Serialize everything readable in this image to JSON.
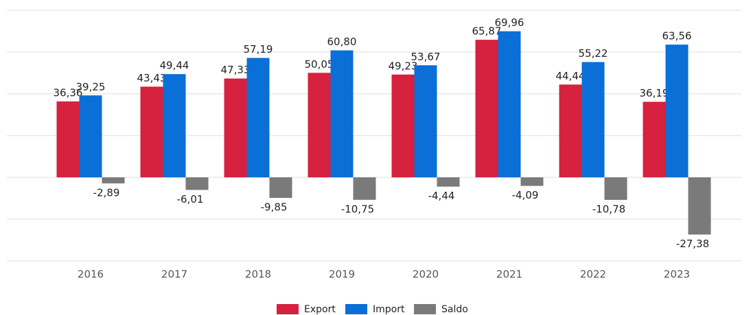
{
  "chart_data": {
    "type": "bar",
    "categories": [
      "2016",
      "2017",
      "2018",
      "2019",
      "2020",
      "2021",
      "2022",
      "2023"
    ],
    "series": [
      {
        "name": "Export",
        "color": "#d6213f",
        "values": [
          36.36,
          43.43,
          47.33,
          50.05,
          49.23,
          65.87,
          44.44,
          36.19
        ],
        "value_labels": [
          "36,36",
          "43,43",
          "47,33",
          "50,05",
          "49,23",
          "65,87",
          "44,44",
          "36,19"
        ]
      },
      {
        "name": "Import",
        "color": "#0a6fd6",
        "values": [
          39.25,
          49.44,
          57.19,
          60.8,
          53.67,
          69.96,
          55.22,
          63.56
        ],
        "value_labels": [
          "39,25",
          "49,44",
          "57,19",
          "60,80",
          "53,67",
          "69,96",
          "55,22",
          "63,56"
        ]
      },
      {
        "name": "Saldo",
        "color": "#7a7a7a",
        "values": [
          -2.89,
          -6.01,
          -9.85,
          -10.75,
          -4.44,
          -4.09,
          -10.78,
          -27.38
        ],
        "value_labels": [
          "-2,89",
          "-6,01",
          "-9,85",
          "-10,75",
          "-4,44",
          "-4,09",
          "-10,78",
          "-27,38"
        ]
      }
    ],
    "ylim": [
      -40,
      80
    ],
    "yticks": [
      -40,
      -20,
      0,
      20,
      40,
      60,
      80
    ],
    "grid": true,
    "legend": "bottom"
  }
}
